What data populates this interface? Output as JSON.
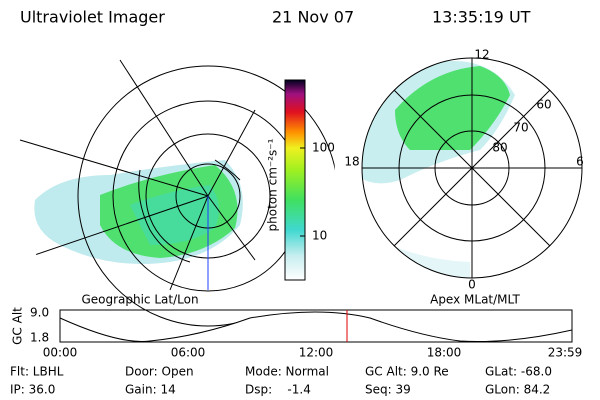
{
  "header": {
    "instrument": "Ultraviolet Imager",
    "date": "21 Nov 07",
    "time": "13:35:19 UT"
  },
  "colorbar": {
    "label": "photon cm⁻²s⁻¹",
    "ticks": [
      "100",
      "10"
    ]
  },
  "geo_panel": {
    "caption": "Geographic Lat/Lon"
  },
  "polar_panel": {
    "caption": "Apex MLat/MLT",
    "mlt_labels": [
      "12",
      "18",
      "6",
      "0"
    ],
    "mlat_labels": [
      "60",
      "70",
      "80"
    ]
  },
  "timeline": {
    "axis_label": "GC Alt",
    "y_labels": [
      "9.0",
      "1.8"
    ],
    "x_labels": [
      "00:00",
      "06:00",
      "12:00",
      "18:00",
      "23:59"
    ]
  },
  "info": [
    [
      "Flt: LBHL",
      "Door: Open",
      "Mode: Normal",
      "GC Alt: 9.0 Re",
      "GLat: -68.0"
    ],
    [
      "IP: 36.0",
      "Gain: 14",
      "Dsp:    -1.4",
      "Seq: 39",
      "GLon: 84.2"
    ]
  ]
}
